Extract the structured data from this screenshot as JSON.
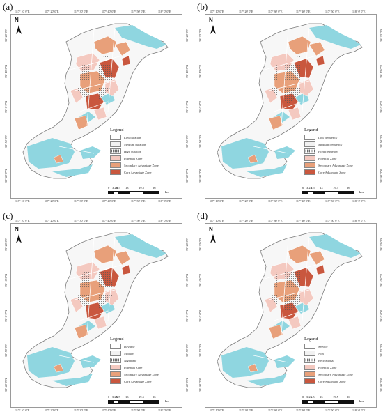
{
  "panels": [
    {
      "label": "(a)",
      "legend_title": "Legend",
      "legend_items": [
        {
          "label": "Low duration",
          "color": "#ffffff",
          "pattern": "plain"
        },
        {
          "label": "Medium duration",
          "color": "#f2f2f2",
          "pattern": "plain"
        },
        {
          "label": "High duration",
          "color": "#ffffff",
          "pattern": "dots"
        },
        {
          "label": "Potential Zone",
          "color": "#f4c9c0",
          "pattern": "fill"
        },
        {
          "label": "Secondary Advantage Zone",
          "color": "#e8a07a",
          "pattern": "fill"
        },
        {
          "label": "Core Advantage Zone",
          "color": "#c9573e",
          "pattern": "fill"
        }
      ]
    },
    {
      "label": "(b)",
      "legend_title": "Legend",
      "legend_items": [
        {
          "label": "Low frequency",
          "color": "#ffffff",
          "pattern": "plain"
        },
        {
          "label": "Medium frequency",
          "color": "#f2f2f2",
          "pattern": "plain"
        },
        {
          "label": "High frequency",
          "color": "#ffffff",
          "pattern": "dots"
        },
        {
          "label": "Potential Zone",
          "color": "#f4c9c0",
          "pattern": "fill"
        },
        {
          "label": "Secondary Advantage Zone",
          "color": "#e8a07a",
          "pattern": "fill"
        },
        {
          "label": "Core Advantage Zone",
          "color": "#c9573e",
          "pattern": "fill"
        }
      ]
    },
    {
      "label": "(c)",
      "legend_title": "Legend",
      "legend_items": [
        {
          "label": "Daytime",
          "color": "#ffffff",
          "pattern": "plain"
        },
        {
          "label": "Midday",
          "color": "#f2f2f2",
          "pattern": "plain"
        },
        {
          "label": "Nighttime",
          "color": "#ffffff",
          "pattern": "dots"
        },
        {
          "label": "Potential Zone",
          "color": "#f4c9c0",
          "pattern": "fill"
        },
        {
          "label": "Secondary Advantage Zone",
          "color": "#e8a07a",
          "pattern": "fill"
        },
        {
          "label": "Core Advantage Zone",
          "color": "#c9573e",
          "pattern": "fill"
        }
      ]
    },
    {
      "label": "(d)",
      "legend_title": "Legend",
      "legend_items": [
        {
          "label": "Service",
          "color": "#ffffff",
          "pattern": "plain"
        },
        {
          "label": "Non",
          "color": "#f2f2f2",
          "pattern": "plain"
        },
        {
          "label": "Recreational",
          "color": "#ffffff",
          "pattern": "dots"
        },
        {
          "label": "Potential Zone",
          "color": "#f4c9c0",
          "pattern": "fill"
        },
        {
          "label": "Secondary Advantage Zone",
          "color": "#e8a07a",
          "pattern": "fill"
        },
        {
          "label": "Core Advantage Zone",
          "color": "#c9573e",
          "pattern": "fill"
        }
      ]
    }
  ],
  "north_letter": "N",
  "scale": {
    "labels": [
      "0",
      "3.25",
      "6.5",
      "13",
      "19.5",
      "26"
    ],
    "unit": "km"
  },
  "top_ticks": [
    "117° 10′ 0″E",
    "117° 20′ 0″E",
    "117° 30′ 0″E",
    "117° 40′ 0″E",
    "117° 50′ 0″E",
    "118° 0′ 0″E"
  ],
  "left_ticks": [
    "39° 20′ 0″N",
    "39° 10′ 0″N",
    "39° 0′ 0″N",
    "38° 50′ 0″N",
    "38° 40′ 0″N"
  ],
  "colors": {
    "water": "#8fd6e0",
    "boundary": "#7a7a7a",
    "potential": "#f4c9c0",
    "secondary": "#e8a07a",
    "core": "#c9573e"
  }
}
